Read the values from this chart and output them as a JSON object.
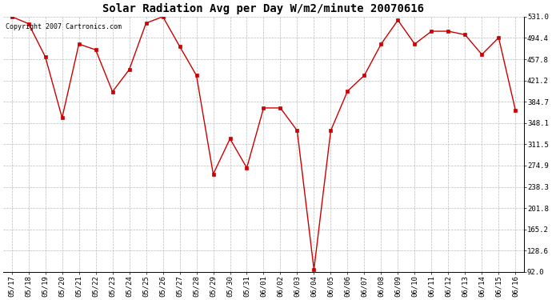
{
  "title": "Solar Radiation Avg per Day W/m2/minute 20070616",
  "copyright": "Copyright 2007 Cartronics.com",
  "dates": [
    "05/17",
    "05/18",
    "05/19",
    "05/20",
    "05/21",
    "05/22",
    "05/23",
    "05/24",
    "05/25",
    "05/26",
    "05/27",
    "05/28",
    "05/29",
    "05/30",
    "05/31",
    "06/01",
    "06/02",
    "06/03",
    "06/04",
    "06/05",
    "06/06",
    "06/07",
    "06/08",
    "06/09",
    "06/10",
    "06/11",
    "06/12",
    "06/13",
    "06/14",
    "06/15",
    "06/16"
  ],
  "values": [
    531,
    519,
    462,
    357,
    484,
    474,
    402,
    440,
    520,
    531,
    480,
    430,
    260,
    321,
    271,
    374,
    374,
    335,
    96,
    335,
    403,
    430,
    484,
    525,
    484,
    506,
    506,
    500,
    466,
    495,
    370
  ],
  "line_color": "#cc0000",
  "marker": "s",
  "marker_size": 2.5,
  "bg_color": "#ffffff",
  "grid_color": "#bbbbbb",
  "ylim_min": 92.0,
  "ylim_max": 531.0,
  "yticks": [
    92.0,
    128.6,
    165.2,
    201.8,
    238.3,
    274.9,
    311.5,
    348.1,
    384.7,
    421.2,
    457.8,
    494.4,
    531.0
  ],
  "title_fontsize": 10,
  "tick_fontsize": 6.5,
  "copyright_fontsize": 6,
  "figwidth": 6.9,
  "figheight": 3.75,
  "dpi": 100
}
